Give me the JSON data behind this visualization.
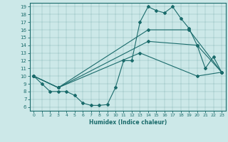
{
  "xlabel": "Humidex (Indice chaleur)",
  "bg_color": "#cce8e8",
  "line_color": "#1a6b6b",
  "xlim": [
    -0.5,
    23.5
  ],
  "ylim": [
    5.5,
    19.5
  ],
  "yticks": [
    6,
    7,
    8,
    9,
    10,
    11,
    12,
    13,
    14,
    15,
    16,
    17,
    18,
    19
  ],
  "xticks": [
    0,
    1,
    2,
    3,
    4,
    5,
    6,
    7,
    8,
    9,
    10,
    11,
    12,
    13,
    14,
    15,
    16,
    17,
    18,
    19,
    20,
    21,
    22,
    23
  ],
  "line1_x": [
    0,
    1,
    2,
    3,
    4,
    5,
    6,
    7,
    8,
    9,
    10,
    11,
    12,
    13,
    14,
    15,
    16,
    17,
    18,
    19,
    20,
    21,
    22,
    23
  ],
  "line1_y": [
    10,
    9,
    8,
    8,
    8,
    7.5,
    6.5,
    6.2,
    6.2,
    6.3,
    8.5,
    12,
    12,
    17,
    19,
    18.5,
    18.2,
    19,
    17.5,
    16.2,
    14,
    11,
    12.5,
    10.5
  ],
  "line2_x": [
    0,
    3,
    14,
    19,
    23
  ],
  "line2_y": [
    10,
    8.5,
    16,
    16,
    10.5
  ],
  "line3_x": [
    0,
    3,
    14,
    20,
    23
  ],
  "line3_y": [
    10,
    8.5,
    14.5,
    14,
    10.5
  ],
  "line4_x": [
    0,
    3,
    13,
    20,
    23
  ],
  "line4_y": [
    10,
    8.5,
    13,
    10,
    10.5
  ]
}
